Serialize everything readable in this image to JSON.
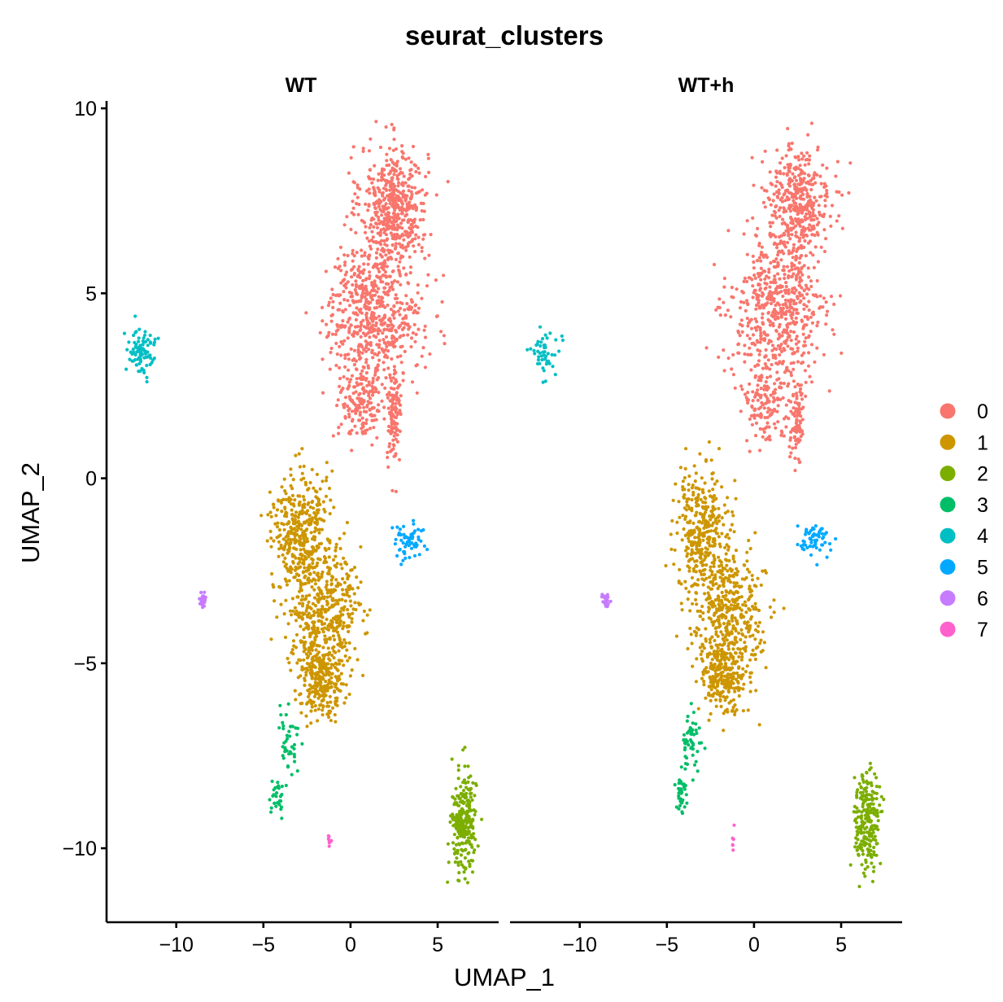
{
  "chart_data": {
    "type": "scatter",
    "title": "seurat_clusters",
    "xlabel": "UMAP_1",
    "ylabel": "UMAP_2",
    "xlim": [
      -14,
      8.5
    ],
    "ylim": [
      -12,
      10.2
    ],
    "x_ticks": [
      -10,
      -5,
      0,
      5
    ],
    "y_ticks": [
      -10,
      -5,
      0,
      5,
      10
    ],
    "x_tick_labels": [
      "−10",
      "−5",
      "0",
      "5"
    ],
    "y_tick_labels": [
      "−10",
      "−5",
      "0",
      "5",
      "10"
    ],
    "panels": [
      "WT",
      "WT+h"
    ],
    "legend_position": "right",
    "clusters": [
      {
        "name": "0",
        "color": "#F8766D",
        "approx_cells": [
          1400,
          1200
        ],
        "regions": [
          {
            "cx": 2.5,
            "cy": 7.4,
            "sx": 1.2,
            "sy": 1.0,
            "w": 0.35
          },
          {
            "cx": 1.4,
            "cy": 4.5,
            "sx": 1.7,
            "sy": 1.2,
            "w": 0.45
          },
          {
            "cx": 0.6,
            "cy": 2.1,
            "sx": 0.8,
            "sy": 0.7,
            "w": 0.12
          },
          {
            "cx": 2.5,
            "cy": 1.6,
            "sx": 0.25,
            "sy": 0.8,
            "w": 0.08
          }
        ]
      },
      {
        "name": "1",
        "color": "#CD9600",
        "approx_cells": [
          1100,
          1000
        ],
        "regions": [
          {
            "cx": -2.9,
            "cy": -1.4,
            "sx": 1.0,
            "sy": 1.0,
            "w": 0.35
          },
          {
            "cx": -1.5,
            "cy": -3.6,
            "sx": 1.3,
            "sy": 1.0,
            "w": 0.4
          },
          {
            "cx": -1.7,
            "cy": -5.4,
            "sx": 0.8,
            "sy": 0.6,
            "w": 0.25
          }
        ]
      },
      {
        "name": "2",
        "color": "#7CAE00",
        "approx_cells": [
          260,
          240
        ],
        "regions": [
          {
            "cx": 6.5,
            "cy": -9.3,
            "sx": 0.45,
            "sy": 0.85,
            "w": 1.0
          }
        ]
      },
      {
        "name": "3",
        "color": "#00BE67",
        "approx_cells": [
          70,
          90
        ],
        "regions": [
          {
            "cx": -3.6,
            "cy": -7.0,
            "sx": 0.35,
            "sy": 0.55,
            "w": 0.6
          },
          {
            "cx": -4.2,
            "cy": -8.6,
            "sx": 0.25,
            "sy": 0.3,
            "w": 0.4
          }
        ]
      },
      {
        "name": "4",
        "color": "#00BFC4",
        "approx_cells": [
          90,
          50
        ],
        "regions": [
          {
            "cx": -12.0,
            "cy": 3.4,
            "sx": 0.5,
            "sy": 0.45,
            "w": 1.0
          }
        ]
      },
      {
        "name": "5",
        "color": "#00A9FF",
        "approx_cells": [
          60,
          60
        ],
        "regions": [
          {
            "cx": 3.3,
            "cy": -1.7,
            "sx": 0.6,
            "sy": 0.3,
            "w": 1.0
          }
        ]
      },
      {
        "name": "6",
        "color": "#C77CFF",
        "approx_cells": [
          25,
          20
        ],
        "regions": [
          {
            "cx": -8.5,
            "cy": -3.3,
            "sx": 0.15,
            "sy": 0.12,
            "w": 1.0
          }
        ]
      },
      {
        "name": "7",
        "color": "#FF61CC",
        "approx_cells": [
          8,
          6
        ],
        "regions": [
          {
            "cx": -1.2,
            "cy": -9.8,
            "sx": 0.05,
            "sy": 0.15,
            "w": 1.0
          }
        ]
      }
    ]
  }
}
